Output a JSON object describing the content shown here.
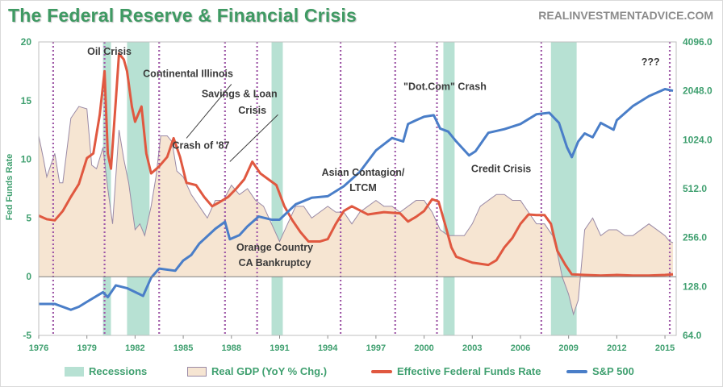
{
  "header": {
    "title": "The Federal Reserve & Financial Crisis",
    "site": "REALINVESTMENTADVICE.COM"
  },
  "colors": {
    "title": "#3f9a63",
    "recession": "#b7e1d3",
    "gdp_fill": "#f6e5d2",
    "gdp_line": "#9a8aa6",
    "fed_funds": "#e05840",
    "sp500": "#4a7ec8",
    "event_line": "#a05aa8"
  },
  "chart_data": {
    "type": "line",
    "ylabel": "Fed Funds Rate",
    "xlim": [
      1976,
      2015.7
    ],
    "ylim_left": [
      -5,
      20
    ],
    "ylim_right": [
      64,
      4096
    ],
    "right_axis_scale": "log2",
    "x_ticks": [
      1976,
      1979,
      1982,
      1985,
      1988,
      1991,
      1994,
      1997,
      2000,
      2003,
      2006,
      2009,
      2012,
      2015
    ],
    "x_tick_labels": [
      "1976",
      "1979",
      "1982",
      "1985",
      "1988",
      "1991",
      "1994",
      "1997",
      "2000",
      "2003",
      "2006",
      "2009",
      "2012",
      "2015"
    ],
    "y_left_ticks": [
      -5,
      0,
      5,
      10,
      15,
      20
    ],
    "y_left_tick_labels": [
      "-5",
      "0",
      "5",
      "10",
      "15",
      "20"
    ],
    "y_right_ticks": [
      64,
      128,
      256,
      512,
      1024,
      2048,
      4096
    ],
    "y_right_tick_labels": [
      "64.0",
      "128.0",
      "256.0",
      "512.0",
      "1024.0",
      "2048.0",
      "4096.0"
    ],
    "grid": false,
    "legend_position": "bottom",
    "legend": [
      "Recessions",
      "Real GDP (YoY % Chg.)",
      "Effective Federal Funds Rate",
      "S&P 500"
    ],
    "recessions": [
      [
        1980.0,
        1980.5
      ],
      [
        1981.5,
        1982.9
      ],
      [
        1990.5,
        1991.2
      ],
      [
        2001.2,
        2001.9
      ],
      [
        2007.9,
        2009.5
      ]
    ],
    "event_lines": [
      1976.9,
      1980.1,
      1983.5,
      1987.6,
      1989.6,
      1994.8,
      1998.2,
      2000.8,
      2007.3,
      2015.3
    ],
    "annotations": [
      {
        "text": "Oil Crisis",
        "x": 1980.4,
        "y": 18.9
      },
      {
        "text": "Continental Illinois",
        "x": 1985.3,
        "y": 17.0
      },
      {
        "text": "Savings & Loan",
        "x": 1988.5,
        "y": 15.3
      },
      {
        "text": "Crisis",
        "x": 1989.3,
        "y": 13.9
      },
      {
        "text": "Crash of '87",
        "x": 1986.1,
        "y": 10.9
      },
      {
        "text": "Asian Contagion/",
        "x": 1996.2,
        "y": 8.6
      },
      {
        "text": "LTCM",
        "x": 1996.2,
        "y": 7.3
      },
      {
        "text": "\"Dot.Com\" Crash",
        "x": 2001.3,
        "y": 15.9
      },
      {
        "text": "Credit Crisis",
        "x": 2004.8,
        "y": 8.9
      },
      {
        "text": "Orange Country",
        "x": 1990.7,
        "y": 2.2
      },
      {
        "text": "CA Bankruptcy",
        "x": 1990.7,
        "y": 0.9
      },
      {
        "text": "???",
        "x": 2014.1,
        "y": 18.0
      }
    ],
    "callouts": [
      {
        "from": [
          1985.2,
          11.8
        ],
        "to": [
          1988.0,
          16.4
        ]
      },
      {
        "from": [
          1987.9,
          9.8
        ],
        "to": [
          1990.9,
          13.8
        ]
      }
    ],
    "series": [
      {
        "name": "Effective Federal Funds Rate",
        "axis": "left",
        "x": [
          1976,
          1976.5,
          1977,
          1977.5,
          1978,
          1978.5,
          1979,
          1979.4,
          1979.8,
          1980.1,
          1980.3,
          1980.5,
          1980.8,
          1981.0,
          1981.3,
          1981.5,
          1981.8,
          1982.0,
          1982.4,
          1982.7,
          1983.0,
          1983.5,
          1984.0,
          1984.4,
          1984.8,
          1985.2,
          1985.8,
          1986.3,
          1986.8,
          1987.2,
          1987.8,
          1988.3,
          1988.8,
          1989.3,
          1989.8,
          1990.3,
          1990.8,
          1991.3,
          1991.8,
          1992.3,
          1992.8,
          1993.5,
          1994.0,
          1994.5,
          1995.0,
          1995.5,
          1996.5,
          1997.5,
          1998.5,
          1999.0,
          1999.5,
          2000.0,
          2000.5,
          2000.9,
          2001.3,
          2001.7,
          2002.0,
          2003.0,
          2004.0,
          2004.5,
          2005.0,
          2005.5,
          2006.0,
          2006.5,
          2007.0,
          2007.5,
          2007.9,
          2008.3,
          2008.8,
          2009.2,
          2010,
          2011,
          2012,
          2013,
          2014,
          2015,
          2015.5
        ],
        "values": [
          5.2,
          4.9,
          4.8,
          5.6,
          6.8,
          7.9,
          10.1,
          10.5,
          13.8,
          17.5,
          10.5,
          9.2,
          15.0,
          19.0,
          18.5,
          17.5,
          14.5,
          13.2,
          14.5,
          10.5,
          8.8,
          9.4,
          10.2,
          11.8,
          10.2,
          8.0,
          7.8,
          6.8,
          6.0,
          6.3,
          6.8,
          7.5,
          8.3,
          9.8,
          8.8,
          8.3,
          7.8,
          6.0,
          4.8,
          3.8,
          3.0,
          3.0,
          3.2,
          4.5,
          5.6,
          6.0,
          5.3,
          5.5,
          5.4,
          4.7,
          5.1,
          5.6,
          6.6,
          6.4,
          4.5,
          2.5,
          1.7,
          1.2,
          1.0,
          1.4,
          2.5,
          3.3,
          4.5,
          5.3,
          5.25,
          5.25,
          4.5,
          2.2,
          1.0,
          0.2,
          0.15,
          0.1,
          0.15,
          0.1,
          0.1,
          0.15,
          0.2
        ]
      },
      {
        "name": "S&P 500",
        "axis": "right",
        "x": [
          1976,
          1977,
          1978,
          1978.5,
          1979,
          1980,
          1980.3,
          1980.8,
          1981.5,
          1982.5,
          1983,
          1983.5,
          1984.5,
          1985,
          1985.5,
          1986,
          1987,
          1987.6,
          1987.9,
          1988.5,
          1989,
          1989.7,
          1990.5,
          1991,
          1992,
          1993,
          1994,
          1995,
          1996,
          1997,
          1998,
          1998.7,
          1999,
          1999.5,
          2000,
          2000.6,
          2001,
          2001.5,
          2002,
          2002.8,
          2003.2,
          2004,
          2005,
          2006,
          2007,
          2007.8,
          2008.4,
          2008.9,
          2009.2,
          2009.6,
          2010,
          2010.5,
          2011,
          2011.8,
          2012,
          2013,
          2014,
          2015,
          2015.5
        ],
        "values": [
          100,
          100,
          92,
          96,
          103,
          118,
          110,
          130,
          125,
          112,
          145,
          165,
          160,
          185,
          200,
          235,
          290,
          320,
          250,
          265,
          300,
          345,
          330,
          330,
          410,
          450,
          460,
          530,
          650,
          880,
          1050,
          1000,
          1280,
          1350,
          1420,
          1450,
          1200,
          1150,
          1000,
          820,
          870,
          1130,
          1190,
          1280,
          1470,
          1500,
          1300,
          920,
          800,
          1000,
          1120,
          1060,
          1300,
          1180,
          1350,
          1650,
          1900,
          2100,
          2050
        ]
      },
      {
        "name": "Real GDP (YoY % Chg.)",
        "axis": "left",
        "x": [
          1976,
          1976.3,
          1976.5,
          1977,
          1977.3,
          1977.5,
          1978,
          1978.5,
          1979,
          1979.3,
          1979.6,
          1980,
          1980.3,
          1980.6,
          1981,
          1981.3,
          1981.6,
          1982,
          1982.3,
          1982.6,
          1983,
          1983.3,
          1983.6,
          1984,
          1984.3,
          1984.6,
          1985,
          1985.5,
          1986,
          1986.5,
          1987,
          1987.5,
          1988,
          1988.5,
          1989,
          1989.5,
          1990,
          1990.5,
          1991,
          1991.5,
          1992,
          1992.5,
          1993,
          1993.5,
          1994,
          1994.5,
          1995,
          1995.5,
          1996,
          1996.5,
          1997,
          1997.5,
          1998,
          1998.5,
          1999,
          1999.5,
          2000,
          2000.5,
          2001,
          2001.5,
          2002,
          2002.5,
          2003,
          2003.5,
          2004,
          2004.5,
          2005,
          2005.5,
          2006,
          2006.5,
          2007,
          2007.5,
          2008,
          2008.3,
          2008.6,
          2009,
          2009.3,
          2009.6,
          2010,
          2010.5,
          2011,
          2011.5,
          2012,
          2012.5,
          2013,
          2013.5,
          2014,
          2014.5,
          2015,
          2015.3,
          2015.5
        ],
        "values": [
          12.0,
          10.0,
          8.5,
          10.5,
          8.0,
          8.0,
          13.5,
          14.5,
          14.3,
          9.5,
          9.2,
          11.0,
          7.5,
          4.5,
          12.5,
          10.0,
          8.0,
          4.0,
          4.5,
          3.5,
          6.0,
          8.5,
          12.0,
          12.0,
          11.5,
          9.0,
          8.5,
          7.0,
          6.0,
          5.0,
          6.5,
          6.5,
          7.8,
          7.0,
          7.5,
          6.5,
          6.0,
          4.5,
          3.0,
          4.5,
          6.0,
          6.0,
          5.0,
          5.5,
          6.0,
          5.5,
          5.5,
          4.5,
          5.5,
          6.0,
          6.5,
          6.0,
          6.0,
          5.5,
          6.0,
          6.5,
          6.5,
          5.5,
          4.0,
          3.5,
          3.5,
          3.5,
          4.5,
          6.0,
          6.5,
          7.0,
          7.0,
          6.5,
          6.5,
          5.5,
          4.5,
          4.5,
          3.5,
          2.0,
          0.0,
          -1.5,
          -3.2,
          -2.0,
          4.0,
          5.0,
          3.5,
          4.0,
          4.0,
          3.5,
          3.5,
          4.0,
          4.5,
          4.0,
          3.5,
          3.0,
          2.9
        ]
      }
    ]
  },
  "legend": {
    "recessions": "Recessions",
    "gdp": "Real GDP (YoY % Chg.)",
    "ffr": "Effective Federal Funds Rate",
    "sp500": "S&P 500"
  }
}
